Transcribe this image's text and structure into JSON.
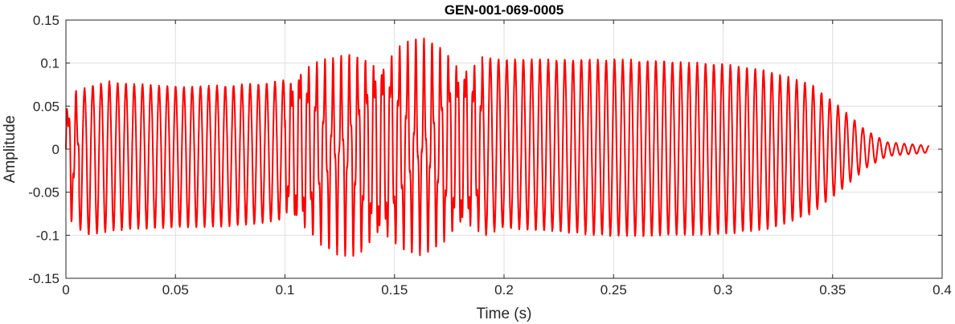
{
  "chart_data": {
    "type": "line",
    "title": "GEN-001-069-0005",
    "xlabel": "Time (s)",
    "ylabel": "Amplitude",
    "xlim": [
      0,
      0.4
    ],
    "ylim": [
      -0.15,
      0.15
    ],
    "xticks": [
      0,
      0.05,
      0.1,
      0.15,
      0.2,
      0.25,
      0.3,
      0.35,
      0.4
    ],
    "xtick_labels": [
      "0",
      "0.05",
      "0.1",
      "0.15",
      "0.2",
      "0.25",
      "0.3",
      "0.35",
      "0.4"
    ],
    "yticks": [
      -0.15,
      -0.1,
      -0.05,
      0,
      0.05,
      0.1,
      0.15
    ],
    "ytick_labels": [
      "-0.15",
      "-0.1",
      "-0.05",
      "0",
      "0.05",
      "0.1",
      "0.15"
    ],
    "grid": true,
    "series": [
      {
        "color": "#ff0000",
        "t_end": 0.394,
        "period_s": 0.00378,
        "envelope": [
          {
            "t": 0.0,
            "pos": 0.055,
            "neg": -0.082
          },
          {
            "t": 0.01,
            "pos": 0.072,
            "neg": -0.098
          },
          {
            "t": 0.02,
            "pos": 0.078,
            "neg": -0.094
          },
          {
            "t": 0.03,
            "pos": 0.075,
            "neg": -0.092
          },
          {
            "t": 0.05,
            "pos": 0.072,
            "neg": -0.09
          },
          {
            "t": 0.07,
            "pos": 0.073,
            "neg": -0.089
          },
          {
            "t": 0.09,
            "pos": 0.075,
            "neg": -0.085
          },
          {
            "t": 0.1,
            "pos": 0.08,
            "neg": -0.08
          },
          {
            "t": 0.106,
            "pos": 0.11,
            "neg": -0.105
          },
          {
            "t": 0.12,
            "pos": 0.1,
            "neg": -0.112
          },
          {
            "t": 0.135,
            "pos": 0.11,
            "neg": -0.125
          },
          {
            "t": 0.15,
            "pos": 0.122,
            "neg": -0.118
          },
          {
            "t": 0.165,
            "pos": 0.122,
            "neg": -0.115
          },
          {
            "t": 0.18,
            "pos": 0.115,
            "neg": -0.108
          },
          {
            "t": 0.19,
            "pos": 0.108,
            "neg": -0.1
          },
          {
            "t": 0.2,
            "pos": 0.103,
            "neg": -0.09
          },
          {
            "t": 0.25,
            "pos": 0.103,
            "neg": -0.1
          },
          {
            "t": 0.3,
            "pos": 0.098,
            "neg": -0.098
          },
          {
            "t": 0.32,
            "pos": 0.09,
            "neg": -0.092
          },
          {
            "t": 0.34,
            "pos": 0.075,
            "neg": -0.075
          },
          {
            "t": 0.355,
            "pos": 0.045,
            "neg": -0.045
          },
          {
            "t": 0.365,
            "pos": 0.022,
            "neg": -0.022
          },
          {
            "t": 0.375,
            "pos": 0.008,
            "neg": -0.008
          },
          {
            "t": 0.394,
            "pos": 0.004,
            "neg": -0.004
          }
        ]
      }
    ]
  }
}
